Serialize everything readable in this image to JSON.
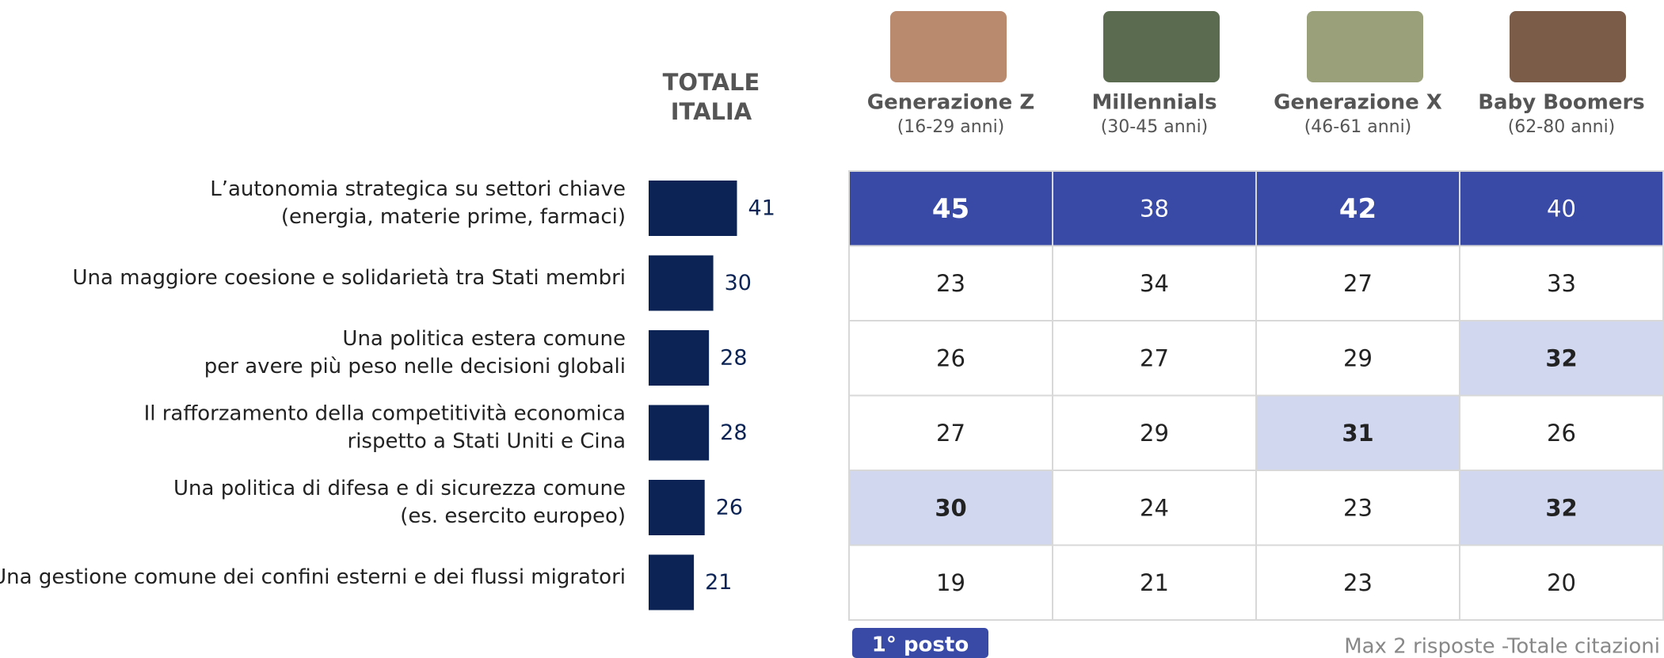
{
  "chart_data": {
    "type": "bar",
    "title": [
      "TOTALE",
      "ITALIA"
    ],
    "color": "#0b2455",
    "categories": [
      [
        "L’autonomia strategica su settori chiave",
        "(energia, materie prime, farmaci)"
      ],
      [
        "Una maggiore coesione e solidarietà tra Stati membri"
      ],
      [
        "Una politica estera comune",
        "per avere più peso nelle decisioni globali"
      ],
      [
        "Il rafforzamento della competitività economica",
        "rispetto a Stati Uniti e Cina"
      ],
      [
        "Una politica di difesa e di sicurezza comune",
        "(es. esercito europeo)"
      ],
      [
        "Una gestione comune dei confini esterni e dei flussi migratori"
      ]
    ],
    "values": [
      41,
      30,
      28,
      28,
      26,
      21
    ]
  },
  "table": {
    "columns": [
      {
        "name": "Generazione Z",
        "ages": "(16-29 anni)"
      },
      {
        "name": "Millennials",
        "ages": "(30-45 anni)"
      },
      {
        "name": "Generazione X",
        "ages": "(46-61 anni)"
      },
      {
        "name": "Baby Boomers",
        "ages": "(62-80 anni)"
      }
    ],
    "rows": [
      [
        45,
        38,
        42,
        40
      ],
      [
        23,
        34,
        27,
        33
      ],
      [
        26,
        27,
        29,
        32
      ],
      [
        27,
        29,
        31,
        26
      ],
      [
        30,
        24,
        23,
        32
      ],
      [
        19,
        21,
        23,
        20
      ]
    ],
    "first_row_color": "#3949a6",
    "highlight_color": "#d0d7ef",
    "highlighted_cells": [
      [
        2,
        3
      ],
      [
        3,
        2
      ],
      [
        4,
        0
      ],
      [
        4,
        3
      ]
    ],
    "bold_cells": [
      [
        0,
        0
      ],
      [
        0,
        2
      ],
      [
        2,
        3
      ],
      [
        3,
        2
      ],
      [
        4,
        0
      ],
      [
        4,
        3
      ]
    ]
  },
  "legend": "1° posto",
  "note": "Max 2 risposte -Totale citazioni"
}
